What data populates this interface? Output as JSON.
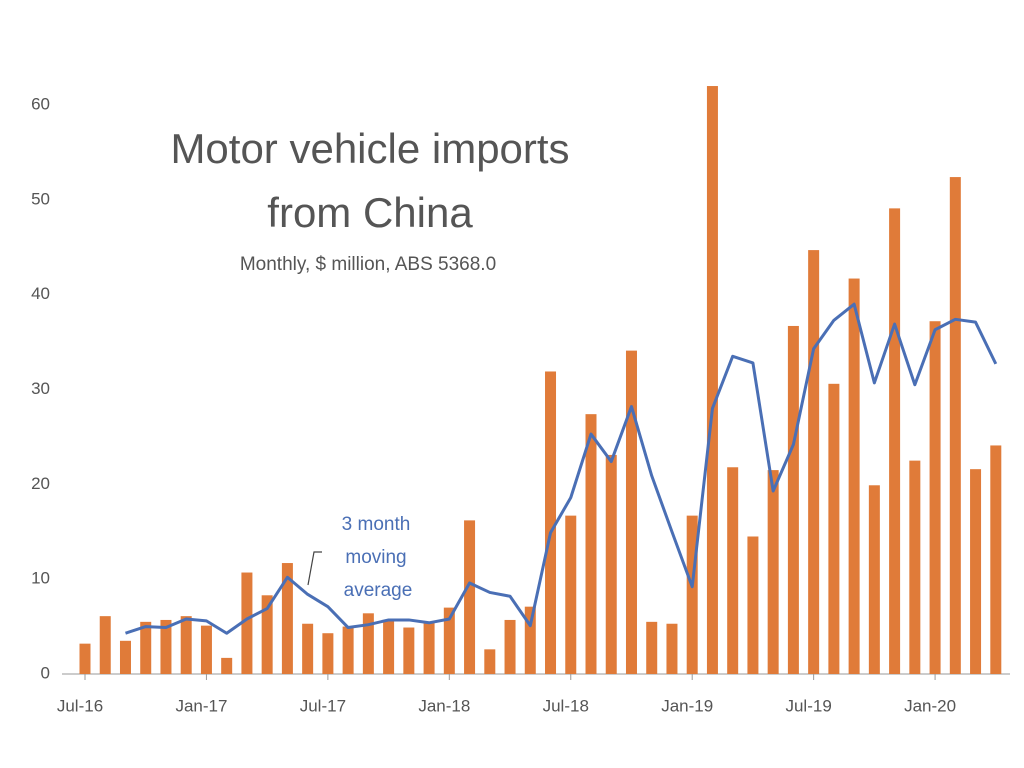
{
  "chart_data": {
    "type": "bar",
    "title": [
      "Motor vehicle imports",
      "from China"
    ],
    "subtitle": "Monthly, $ million, ABS 5368.0",
    "annotation": [
      "3 month",
      "moving",
      "average"
    ],
    "categories": [
      "Jul-16",
      null,
      null,
      null,
      null,
      null,
      "Jan-17",
      null,
      null,
      null,
      null,
      null,
      "Jul-17",
      null,
      null,
      null,
      null,
      null,
      "Jan-18",
      null,
      null,
      null,
      null,
      null,
      "Jul-18",
      null,
      null,
      null,
      null,
      null,
      "Jan-19",
      null,
      null,
      null,
      null,
      null,
      "Jul-19",
      null,
      null,
      null,
      null,
      null,
      "Jan-20",
      null,
      null,
      null
    ],
    "series": [
      {
        "type": "bar",
        "color": "#e07b39",
        "values": [
          3.2,
          6.1,
          3.5,
          5.5,
          5.7,
          6.1,
          5.1,
          1.7,
          10.7,
          8.3,
          11.7,
          5.3,
          4.3,
          5.0,
          6.4,
          5.7,
          4.9,
          5.5,
          7.0,
          16.2,
          2.6,
          5.7,
          7.1,
          31.9,
          16.7,
          27.4,
          23.1,
          34.1,
          5.5,
          5.3,
          16.7,
          62.0,
          21.8,
          14.5,
          21.5,
          36.7,
          44.7,
          30.6,
          41.7,
          19.9,
          49.1,
          22.5,
          37.2,
          52.4,
          21.6,
          24.1
        ]
      },
      {
        "type": "line",
        "color": "#4a6fb5",
        "values": [
          null,
          null,
          4.3,
          5.0,
          4.9,
          5.8,
          5.6,
          4.3,
          5.8,
          6.9,
          10.2,
          8.4,
          7.1,
          4.9,
          5.2,
          5.7,
          5.7,
          5.4,
          5.8,
          9.6,
          8.6,
          8.2,
          5.1,
          14.9,
          18.6,
          25.3,
          22.4,
          28.2,
          20.9,
          15.0,
          9.2,
          28.0,
          33.5,
          32.8,
          19.3,
          24.2,
          34.3,
          37.3,
          39.0,
          30.7,
          36.9,
          30.5,
          36.3,
          37.4,
          37.1,
          32.7
        ]
      }
    ],
    "ylim": [
      0,
      60
    ],
    "yticks": [
      0,
      10,
      20,
      30,
      40,
      50,
      60
    ],
    "grid": false
  }
}
